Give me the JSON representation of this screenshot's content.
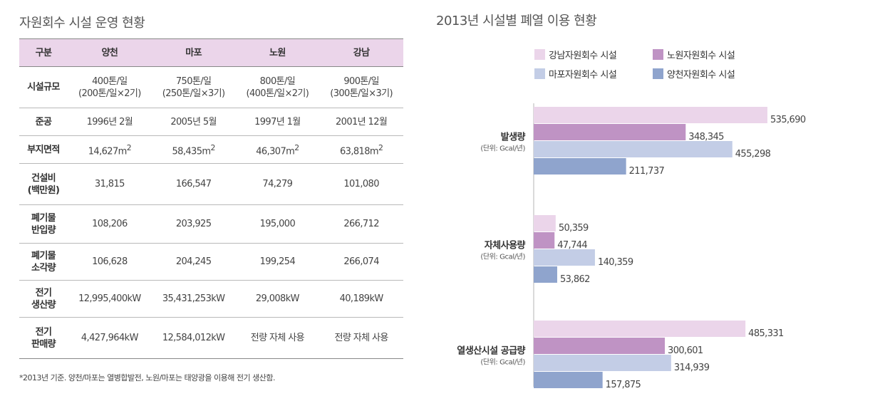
{
  "table": {
    "title": "자원회수 시설 운영 현황",
    "headers": [
      "구분",
      "양천",
      "마포",
      "노원",
      "강남"
    ],
    "rows": [
      {
        "label": "시설규모",
        "cells": [
          "400톤/일\n(200톤/일×2기)",
          "750톤/일\n(250톤/일×3기)",
          "800톤/일\n(400톤/일×2기)",
          "900톤/일\n(300톤/일×3기)"
        ]
      },
      {
        "label": "준공",
        "cells": [
          "1996년 2월",
          "2005년 5월",
          "1997년 1월",
          "2001년 12월"
        ]
      },
      {
        "label": "부지면적",
        "cells": [
          "14,627",
          "58,435",
          "46,307",
          "63,818"
        ],
        "unit": "m",
        "unit_sup": "2"
      },
      {
        "label": "건설비\n(백만원)",
        "cells": [
          "31,815",
          "166,547",
          "74,279",
          "101,080"
        ]
      },
      {
        "label": "폐기물\n반입량",
        "cells": [
          "108,206",
          "203,925",
          "195,000",
          "266,712"
        ]
      },
      {
        "label": "폐기물\n소각량",
        "cells": [
          "106,628",
          "204,245",
          "199,254",
          "266,074"
        ]
      },
      {
        "label": "전기\n생산량",
        "cells": [
          "12,995,400kW",
          "35,431,253kW",
          "29,008kW",
          "40,189kW"
        ]
      },
      {
        "label": "전기\n판매량",
        "cells": [
          "4,427,964kW",
          "12,584,012kW",
          "전량 자체 사용",
          "전량 자체 사용"
        ]
      }
    ],
    "footnote": "*2013년 기준. 양천/마포는 열병합발전, 노원/마포는 태양광을 이용해 전기 생산함."
  },
  "chart_data": {
    "type": "bar",
    "orientation": "horizontal",
    "title": "2013년 시설별 폐열 이용 현황",
    "categories": [
      {
        "name": "발생량",
        "unit": "(단위: Gcal/년)"
      },
      {
        "name": "자체사용량",
        "unit": "(단위: Gcal/년)"
      },
      {
        "name": "열생산시설 공급량",
        "unit": "(단위: Gcal/년)"
      }
    ],
    "series": [
      {
        "name": "강남자원회수 시설",
        "color": "#ebd5ea",
        "values": [
          535690,
          50359,
          485331
        ],
        "labels": [
          "535,690",
          "50,359",
          "485,331"
        ]
      },
      {
        "name": "노원자원회수 시설",
        "color": "#bf93c4",
        "values": [
          348345,
          47744,
          300601
        ],
        "labels": [
          "348,345",
          "47,744",
          "300,601"
        ]
      },
      {
        "name": "마포자원회수 시설",
        "color": "#c3cde6",
        "values": [
          455298,
          140359,
          314939
        ],
        "labels": [
          "455,298",
          "140,359",
          "314,939"
        ]
      },
      {
        "name": "양천자원회수 시설",
        "color": "#8fa4cd",
        "values": [
          211737,
          53862,
          157875
        ],
        "labels": [
          "211,737",
          "53,862",
          "157,875"
        ]
      }
    ],
    "legend_position": "top",
    "grid": false
  }
}
